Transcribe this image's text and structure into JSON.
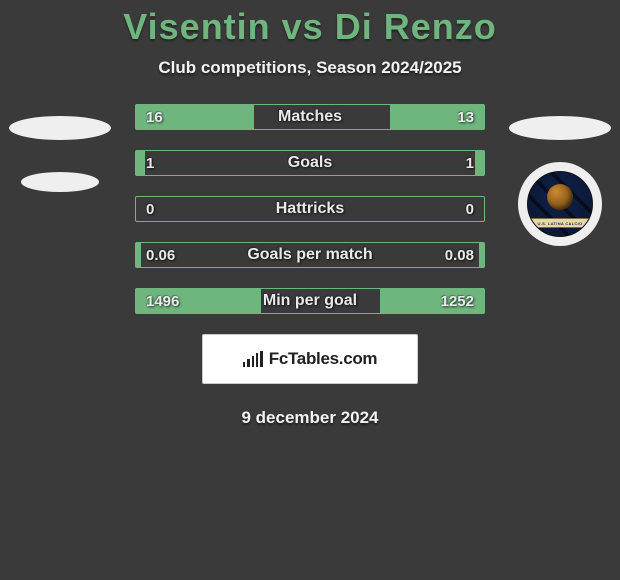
{
  "header": {
    "title": "Visentin vs Di Renzo",
    "subtitle": "Club competitions, Season 2024/2025",
    "title_color": "#6fb57e",
    "subtitle_color": "#f2f2f2"
  },
  "stats": {
    "accent_color": "#6fb57e",
    "rows": [
      {
        "label": "Matches",
        "left_value": "16",
        "right_value": "13",
        "left_pct": 34,
        "right_pct": 27
      },
      {
        "label": "Goals",
        "left_value": "1",
        "right_value": "1",
        "left_pct": 2.5,
        "right_pct": 2.5
      },
      {
        "label": "Hattricks",
        "left_value": "0",
        "right_value": "0",
        "left_pct": 0,
        "right_pct": 0
      },
      {
        "label": "Goals per match",
        "left_value": "0.06",
        "right_value": "0.08",
        "left_pct": 1.5,
        "right_pct": 1.5
      },
      {
        "label": "Min per goal",
        "left_value": "1496",
        "right_value": "1252",
        "left_pct": 36,
        "right_pct": 30
      }
    ]
  },
  "badges": {
    "right_club_text": "U.S. LATINA CALCIO"
  },
  "brand": {
    "text": "FcTables.com"
  },
  "footer": {
    "date": "9 december 2024"
  },
  "colors": {
    "background": "#3a3a3a",
    "bar_border": "#6fb57e",
    "bar_fill": "#6fb57e",
    "text": "#e9e9e9"
  }
}
